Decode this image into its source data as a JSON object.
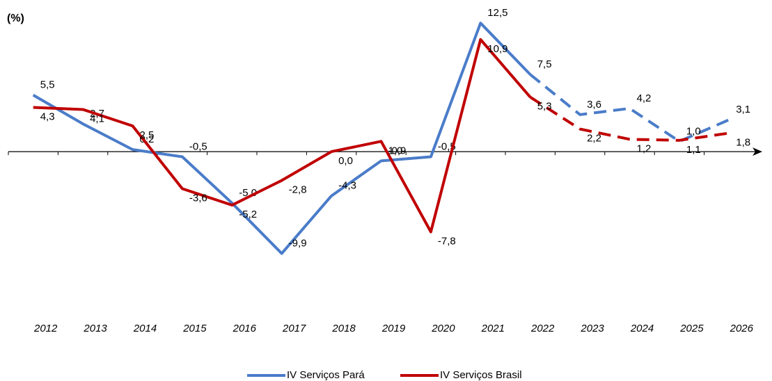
{
  "chart_data": {
    "type": "line",
    "y_label": "(%)",
    "categories": [
      "2012",
      "2013",
      "2014",
      "2015",
      "2016",
      "2017",
      "2018",
      "2019",
      "2020",
      "2021",
      "2022",
      "2023",
      "2024",
      "2025",
      "2026"
    ],
    "ylim": [
      -15,
      14
    ],
    "series": [
      {
        "name": "IV Serviços Pará",
        "color": "#4a7cc9",
        "dashed_from": "2022",
        "values": [
          5.5,
          2.7,
          0.2,
          -0.5,
          -5.0,
          -9.9,
          -4.3,
          -0.9,
          -0.5,
          12.5,
          7.5,
          3.6,
          4.2,
          1.0,
          3.1
        ],
        "value_labels": [
          "5,5",
          "2,7",
          "0,2",
          "-0,5",
          "-5,0",
          "-9,9",
          "-4,3",
          "-0,9",
          "-0,5",
          "12,5",
          "7,5",
          "3,6",
          "4,2",
          "1,0",
          "3,1"
        ]
      },
      {
        "name": "IV Serviços Brasil",
        "color": "#c00000",
        "dashed_from": "2022",
        "values": [
          4.3,
          4.1,
          2.5,
          -3.6,
          -5.2,
          -2.8,
          0.0,
          1.0,
          -7.8,
          10.9,
          5.3,
          2.2,
          1.2,
          1.1,
          1.8
        ],
        "value_labels": [
          "4,3",
          "4,1",
          "2,5",
          "-3,6",
          "-5,2",
          "-2,8",
          "0,0",
          "1,0",
          "-7,8",
          "10,9",
          "5,3",
          "2,2",
          "1,2",
          "1,1",
          "1,8"
        ]
      }
    ]
  }
}
